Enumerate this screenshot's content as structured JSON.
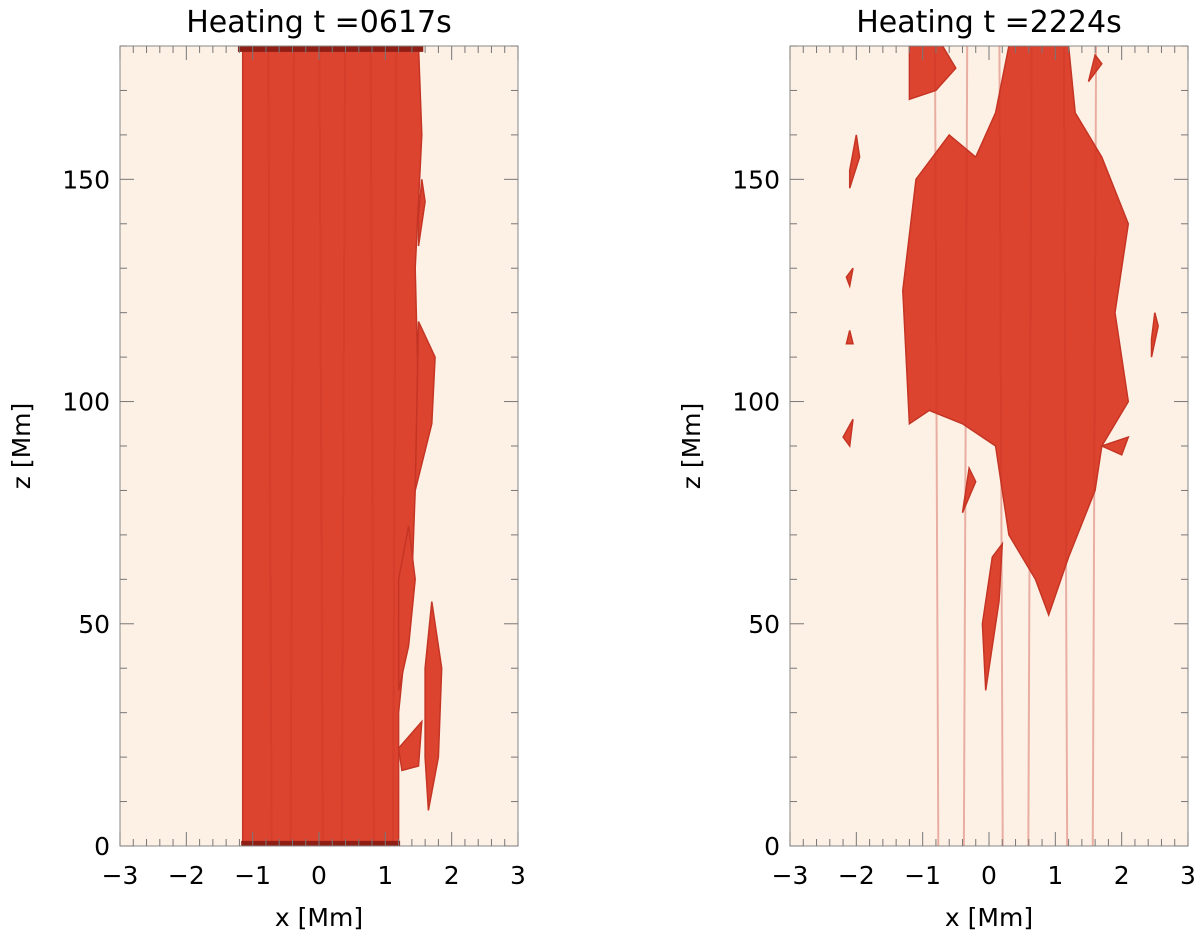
{
  "colors": {
    "background": "#fdf1e6",
    "isosurface": "#dd4430",
    "isosurface_shade": "#c53524",
    "isosurface_dark": "#8f1e14",
    "axis": "#000000"
  },
  "chart_data": [
    {
      "type": "area",
      "title": "Heating t =0617s",
      "xlabel": "x [Mm]",
      "ylabel": "z [Mm]",
      "xlim": [
        -3,
        3
      ],
      "ylim": [
        0,
        180
      ],
      "x_ticks": [
        "−3",
        "−2",
        "−1",
        "0",
        "1",
        "2",
        "3"
      ],
      "y_ticks": [
        "0",
        "50",
        "100",
        "150"
      ],
      "x_tick_values": [
        -3,
        -2,
        -1,
        0,
        1,
        2,
        3
      ],
      "y_tick_values": [
        0,
        50,
        100,
        150
      ],
      "regions": [
        {
          "points": [
            [
              -1.15,
              0
            ],
            [
              1.2,
              0
            ],
            [
              1.2,
              30
            ],
            [
              1.4,
              60
            ],
            [
              1.5,
              100
            ],
            [
              1.45,
              130
            ],
            [
              1.55,
              160
            ],
            [
              1.5,
              180
            ],
            [
              -1.15,
              180
            ]
          ]
        },
        {
          "points": [
            [
              1.2,
              35
            ],
            [
              1.35,
              45
            ],
            [
              1.45,
              60
            ],
            [
              1.35,
              72
            ],
            [
              1.2,
              60
            ]
          ]
        },
        {
          "points": [
            [
              1.65,
              8
            ],
            [
              1.8,
              20
            ],
            [
              1.85,
              40
            ],
            [
              1.7,
              55
            ],
            [
              1.6,
              40
            ],
            [
              1.6,
              20
            ]
          ]
        },
        {
          "points": [
            [
              1.2,
              22
            ],
            [
              1.55,
              28
            ],
            [
              1.5,
              18
            ],
            [
              1.25,
              17
            ]
          ]
        },
        {
          "points": [
            [
              1.45,
              80
            ],
            [
              1.7,
              95
            ],
            [
              1.75,
              110
            ],
            [
              1.5,
              118
            ]
          ]
        },
        {
          "points": [
            [
              1.5,
              135
            ],
            [
              1.6,
              145
            ],
            [
              1.55,
              150
            ],
            [
              1.5,
              142
            ]
          ]
        }
      ],
      "dark_edges": [
        {
          "points": [
            [
              -1.15,
              0
            ],
            [
              1.2,
              0
            ],
            [
              1.2,
              0.8
            ],
            [
              -1.15,
              0.8
            ]
          ]
        },
        {
          "points": [
            [
              -1.2,
              179
            ],
            [
              1.55,
              179
            ],
            [
              1.55,
              180
            ],
            [
              -1.2,
              180
            ]
          ]
        }
      ]
    },
    {
      "type": "area",
      "title": "Heating t =2224s",
      "xlabel": "x [Mm]",
      "ylabel": "z [Mm]",
      "xlim": [
        -3,
        3
      ],
      "ylim": [
        0,
        180
      ],
      "x_ticks": [
        "−3",
        "−2",
        "−1",
        "0",
        "1",
        "2",
        "3"
      ],
      "y_ticks": [
        "0",
        "50",
        "100",
        "150"
      ],
      "x_tick_values": [
        -3,
        -2,
        -1,
        0,
        1,
        2,
        3
      ],
      "y_tick_values": [
        0,
        50,
        100,
        150
      ],
      "regions": [
        {
          "points": [
            [
              -1.2,
              95
            ],
            [
              -1.3,
              125
            ],
            [
              -1.1,
              150
            ],
            [
              -0.6,
              160
            ],
            [
              -0.2,
              155
            ],
            [
              0.1,
              165
            ],
            [
              0.3,
              180
            ],
            [
              1.2,
              180
            ],
            [
              1.3,
              165
            ],
            [
              1.7,
              155
            ],
            [
              2.1,
              140
            ],
            [
              1.9,
              120
            ],
            [
              2.1,
              100
            ],
            [
              1.7,
              90
            ],
            [
              1.6,
              80
            ],
            [
              1.2,
              65
            ],
            [
              0.9,
              52
            ],
            [
              0.7,
              60
            ],
            [
              0.3,
              70
            ],
            [
              0.1,
              90
            ],
            [
              -0.4,
              95
            ],
            [
              -0.9,
              98
            ]
          ]
        },
        {
          "points": [
            [
              -1.2,
              168
            ],
            [
              -0.8,
              170
            ],
            [
              -0.5,
              175
            ],
            [
              -0.7,
              180
            ],
            [
              -1.2,
              180
            ]
          ]
        },
        {
          "points": [
            [
              -0.05,
              35
            ],
            [
              0.15,
              55
            ],
            [
              0.2,
              68
            ],
            [
              0.05,
              65
            ],
            [
              -0.1,
              50
            ]
          ]
        },
        {
          "points": [
            [
              -2.1,
              148
            ],
            [
              -1.95,
              155
            ],
            [
              -2.0,
              160
            ],
            [
              -2.1,
              152
            ]
          ]
        },
        {
          "points": [
            [
              -2.2,
              92
            ],
            [
              -2.05,
              96
            ],
            [
              -2.1,
              90
            ]
          ]
        },
        {
          "points": [
            [
              2.45,
              110
            ],
            [
              2.55,
              117
            ],
            [
              2.5,
              120
            ],
            [
              2.45,
              114
            ]
          ]
        },
        {
          "points": [
            [
              1.7,
              90
            ],
            [
              2.1,
              92
            ],
            [
              2.0,
              88
            ]
          ]
        },
        {
          "points": [
            [
              1.5,
              172
            ],
            [
              1.7,
              176
            ],
            [
              1.6,
              178
            ]
          ]
        },
        {
          "points": [
            [
              -2.15,
              128
            ],
            [
              -2.05,
              130
            ],
            [
              -2.1,
              126
            ]
          ]
        },
        {
          "points": [
            [
              -2.15,
              113
            ],
            [
              -2.1,
              116
            ],
            [
              -2.05,
              113
            ]
          ]
        },
        {
          "points": [
            [
              -0.4,
              75
            ],
            [
              -0.2,
              82
            ],
            [
              -0.3,
              85
            ]
          ]
        }
      ],
      "dark_edges": []
    }
  ]
}
